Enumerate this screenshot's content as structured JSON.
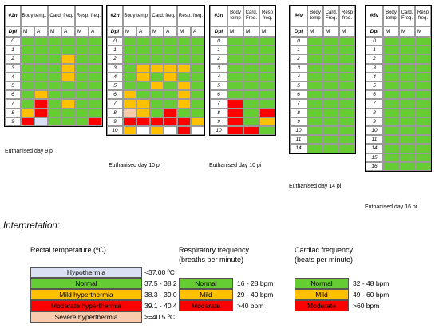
{
  "colors": {
    "normal": "#66cc33",
    "mild": "#ffc000",
    "moderate": "#ff0000",
    "hypothermia": "#d9e1f2",
    "severe": "#f8cbad",
    "white": "#ffffff"
  },
  "chart_data": {
    "type": "table",
    "experiments": [
      {
        "id": "#1n",
        "groups": [
          {
            "label": "Body temp.",
            "cols": [
              "M",
              "A"
            ]
          },
          {
            "label": "Card. freq.",
            "cols": [
              "M",
              "A"
            ]
          },
          {
            "label": "Resp. freq.",
            "cols": [
              "M",
              "A"
            ]
          }
        ],
        "dpi": [
          "0",
          "1",
          "2",
          "3",
          "4",
          "5",
          "6",
          "7",
          "8",
          "9"
        ],
        "values": [
          [
            "N",
            "N",
            "N",
            "N",
            "N",
            "N"
          ],
          [
            "N",
            "N",
            "N",
            "N",
            "N",
            "N"
          ],
          [
            "N",
            "N",
            "N",
            "Y",
            "N",
            "N"
          ],
          [
            "N",
            "N",
            "N",
            "Y",
            "N",
            "N"
          ],
          [
            "N",
            "N",
            "N",
            "Y",
            "N",
            "N"
          ],
          [
            "N",
            "N",
            "N",
            "N",
            "N",
            "N"
          ],
          [
            "N",
            "Y",
            "N",
            "N",
            "N",
            "N"
          ],
          [
            "N",
            "R",
            "N",
            "Y",
            "N",
            "N"
          ],
          [
            "Y",
            "R",
            "N",
            "N",
            "N",
            "N"
          ],
          [
            "R",
            "H",
            "N",
            "N",
            "N",
            "R"
          ]
        ],
        "caption": "Euthanised day 9 pi"
      },
      {
        "id": "#2n",
        "groups": [
          {
            "label": "Body temp.",
            "cols": [
              "M",
              "A"
            ]
          },
          {
            "label": "Card. freq.",
            "cols": [
              "M",
              "A"
            ]
          },
          {
            "label": "Resp. freq.",
            "cols": [
              "M",
              "A"
            ]
          }
        ],
        "dpi": [
          "0",
          "1",
          "2",
          "3",
          "4",
          "5",
          "6",
          "7",
          "8",
          "9",
          "10"
        ],
        "values": [
          [
            "N",
            "N",
            "N",
            "N",
            "N",
            "N"
          ],
          [
            "N",
            "N",
            "N",
            "N",
            "N",
            "N"
          ],
          [
            "N",
            "N",
            "N",
            "N",
            "N",
            "N"
          ],
          [
            "N",
            "Y",
            "Y",
            "Y",
            "Y",
            "N"
          ],
          [
            "N",
            "Y",
            "N",
            "Y",
            "N",
            "N"
          ],
          [
            "N",
            "N",
            "Y",
            "N",
            "Y",
            "N"
          ],
          [
            "Y",
            "N",
            "N",
            "N",
            "Y",
            "N"
          ],
          [
            "Y",
            "Y",
            "N",
            "N",
            "Y",
            "N"
          ],
          [
            "S",
            "Y",
            "N",
            "R",
            "N",
            "N"
          ],
          [
            "R",
            "R",
            "R",
            "R",
            "R",
            "Y"
          ],
          [
            "Y",
            "W",
            "Y",
            "W",
            "R",
            "W"
          ]
        ],
        "caption": "Euthanised day 10 pi"
      },
      {
        "id": "#3n",
        "groups": [
          {
            "label": "Body temp",
            "cols": [
              "M"
            ]
          },
          {
            "label": "Card. Freq.",
            "cols": [
              "M"
            ]
          },
          {
            "label": "Resp freq.",
            "cols": [
              "M"
            ]
          }
        ],
        "dpi": [
          "0",
          "1",
          "2",
          "3",
          "4",
          "5",
          "6",
          "7",
          "8",
          "9",
          "10"
        ],
        "values": [
          [
            "N",
            "N",
            "N"
          ],
          [
            "N",
            "N",
            "N"
          ],
          [
            "N",
            "N",
            "N"
          ],
          [
            "N",
            "N",
            "N"
          ],
          [
            "N",
            "N",
            "N"
          ],
          [
            "N",
            "N",
            "N"
          ],
          [
            "N",
            "N",
            "N"
          ],
          [
            "R",
            "N",
            "N"
          ],
          [
            "R",
            "N",
            "R"
          ],
          [
            "R",
            "N",
            "Y"
          ],
          [
            "R",
            "R",
            "N"
          ]
        ],
        "caption": "Euthanised day 10 pi"
      },
      {
        "id": "#4v",
        "groups": [
          {
            "label": "Body temp",
            "cols": [
              "M"
            ]
          },
          {
            "label": "Card. Freq.",
            "cols": [
              "M"
            ]
          },
          {
            "label": "Resp freq.",
            "cols": [
              "M"
            ]
          }
        ],
        "dpi": [
          "0",
          "1",
          "2",
          "3",
          "4",
          "5",
          "6",
          "7",
          "8",
          "9",
          "10",
          "11",
          "14"
        ],
        "values": [
          [
            "N",
            "N",
            "N"
          ],
          [
            "N",
            "N",
            "N"
          ],
          [
            "N",
            "N",
            "N"
          ],
          [
            "N",
            "N",
            "N"
          ],
          [
            "N",
            "N",
            "N"
          ],
          [
            "N",
            "N",
            "N"
          ],
          [
            "N",
            "N",
            "N"
          ],
          [
            "N",
            "N",
            "N"
          ],
          [
            "N",
            "N",
            "N"
          ],
          [
            "N",
            "N",
            "N"
          ],
          [
            "N",
            "N",
            "N"
          ],
          [
            "N",
            "N",
            "N"
          ],
          [
            "N",
            "N",
            "N"
          ]
        ],
        "caption": "Euthanised day 14 pi"
      },
      {
        "id": "#5v",
        "groups": [
          {
            "label": "Body temp",
            "cols": [
              "M"
            ]
          },
          {
            "label": "Card. Freq.",
            "cols": [
              "M"
            ]
          },
          {
            "label": "Resp freq.",
            "cols": [
              "M"
            ]
          }
        ],
        "dpi": [
          "0",
          "1",
          "2",
          "3",
          "4",
          "5",
          "6",
          "7",
          "8",
          "9",
          "10",
          "11",
          "14",
          "15",
          "16"
        ],
        "values": [
          [
            "N",
            "N",
            "N"
          ],
          [
            "N",
            "N",
            "N"
          ],
          [
            "N",
            "N",
            "N"
          ],
          [
            "N",
            "N",
            "N"
          ],
          [
            "N",
            "N",
            "N"
          ],
          [
            "N",
            "N",
            "N"
          ],
          [
            "N",
            "N",
            "N"
          ],
          [
            "N",
            "N",
            "N"
          ],
          [
            "N",
            "N",
            "N"
          ],
          [
            "N",
            "N",
            "N"
          ],
          [
            "N",
            "N",
            "N"
          ],
          [
            "N",
            "N",
            "N"
          ],
          [
            "N",
            "N",
            "N"
          ],
          [
            "N",
            "N",
            "N"
          ],
          [
            "N",
            "N",
            "N"
          ]
        ],
        "caption": "Euthanised day 16 pi"
      }
    ],
    "dpi_header": "Dpi"
  },
  "interpretation_title": "Interpretation:",
  "legend": {
    "temperature": {
      "title": "Rectal temperature (ºC)",
      "items": [
        {
          "label": "Hypothermia",
          "range": "<37.00 ºC",
          "code": "H"
        },
        {
          "label": "Normal",
          "range": "37.5 - 38.2 ºC",
          "code": "N"
        },
        {
          "label": "Mild hyperthermia",
          "range": "38.3 - 39.0 ºC",
          "code": "Y"
        },
        {
          "label": "Moderate hyperthermia",
          "range": "39.1 - 40.4  ºC",
          "code": "R"
        },
        {
          "label": "Severe hyperthermia",
          "range": ">=40.5 ºC",
          "code": "S"
        }
      ]
    },
    "respiratory": {
      "title_line1": "Respiratory frequency",
      "title_line2": "(breaths per minute)",
      "items": [
        {
          "label": "Normal",
          "range": "16 - 28 bpm",
          "code": "N"
        },
        {
          "label": "Mild",
          "range": "29 - 40 bpm",
          "code": "Y"
        },
        {
          "label": "Moderate",
          "range": ">40 bpm",
          "code": "R"
        }
      ]
    },
    "cardiac": {
      "title_line1": "Cardiac frequency",
      "title_line2": "(beats per minute)",
      "items": [
        {
          "label": "Normal",
          "range": "32 - 48 bpm",
          "code": "N"
        },
        {
          "label": "Mild",
          "range": "49 - 60 bpm",
          "code": "Y"
        },
        {
          "label": "Moderate",
          "range": ">60 bpm",
          "code": "R"
        }
      ]
    }
  }
}
